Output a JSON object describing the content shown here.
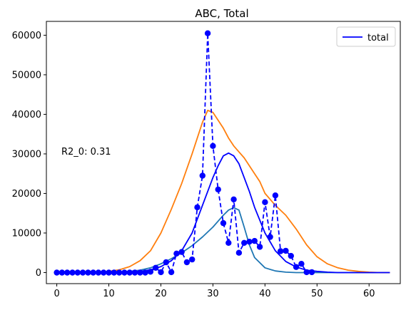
{
  "chart_data": {
    "type": "line",
    "title": "ABC, Total",
    "xlabel": "",
    "ylabel": "",
    "xlim": [
      -2,
      66
    ],
    "ylim": [
      -2800,
      63500
    ],
    "xticks": [
      0,
      10,
      20,
      30,
      40,
      50,
      60
    ],
    "yticks": [
      0,
      10000,
      20000,
      30000,
      40000,
      50000,
      60000
    ],
    "grid": false,
    "legend": {
      "placement": "top-right",
      "entries": [
        "total"
      ]
    },
    "annotation": "R2_0: 0.31",
    "colors": {
      "blue": "#0000ff",
      "orange": "#ff7f0e",
      "teal": "#1f77b4"
    },
    "series": [
      {
        "name": "total",
        "style": "solid",
        "color": "#0000ff",
        "x": [
          0,
          2,
          4,
          6,
          8,
          10,
          12,
          14,
          16,
          18,
          20,
          22,
          24,
          26,
          28,
          30,
          31,
          32,
          33,
          34,
          35,
          36,
          37,
          38,
          40,
          42,
          44,
          46,
          48,
          50,
          52,
          54,
          56,
          58,
          60,
          62,
          64
        ],
        "y": [
          0,
          0,
          0,
          0,
          0,
          0,
          0,
          100,
          300,
          700,
          1500,
          3000,
          5500,
          10000,
          17000,
          24000,
          27000,
          29500,
          30200,
          29500,
          27500,
          24000,
          20500,
          16500,
          10000,
          5500,
          2800,
          1400,
          600,
          300,
          100,
          0,
          0,
          0,
          0,
          0,
          0
        ]
      },
      {
        "style": "dashed-markers",
        "color": "#0000ff",
        "x": [
          0,
          1,
          2,
          3,
          4,
          5,
          6,
          7,
          8,
          9,
          10,
          11,
          12,
          13,
          14,
          15,
          16,
          17,
          18,
          19,
          20,
          21,
          22,
          23,
          24,
          25,
          26,
          27,
          28,
          29,
          30,
          31,
          32,
          33,
          34,
          35,
          36,
          37,
          38,
          39,
          40,
          41,
          42,
          43,
          44,
          45,
          46,
          47,
          48,
          49
        ],
        "y": [
          0,
          0,
          0,
          0,
          0,
          0,
          0,
          0,
          0,
          0,
          0,
          0,
          0,
          0,
          0,
          0,
          0,
          0,
          200,
          1200,
          100,
          2600,
          100,
          4800,
          5200,
          2600,
          3300,
          16500,
          24500,
          60500,
          32000,
          21000,
          12500,
          7500,
          18500,
          5000,
          7500,
          7800,
          8000,
          6500,
          17800,
          9000,
          19500,
          5400,
          5500,
          4200,
          1400,
          2200,
          100,
          100
        ]
      },
      {
        "style": "solid",
        "color": "#ff7f0e",
        "x": [
          0,
          2,
          4,
          6,
          8,
          10,
          12,
          14,
          16,
          18,
          20,
          22,
          24,
          26,
          27,
          28,
          29,
          30,
          31,
          32,
          33,
          34,
          35,
          36,
          37,
          38,
          39,
          40,
          42,
          44,
          46,
          48,
          50,
          52,
          54,
          56,
          58,
          60,
          62,
          64
        ],
        "y": [
          0,
          0,
          0,
          0,
          100,
          300,
          700,
          1500,
          3000,
          5500,
          10000,
          16000,
          22500,
          30000,
          34000,
          38000,
          41000,
          40500,
          38500,
          36500,
          34000,
          32000,
          30500,
          29000,
          27000,
          25000,
          23000,
          20000,
          17000,
          14500,
          11000,
          7000,
          4000,
          2200,
          1200,
          600,
          300,
          100,
          0,
          0
        ]
      },
      {
        "style": "solid",
        "color": "#1f77b4",
        "x": [
          0,
          2,
          4,
          6,
          8,
          10,
          12,
          14,
          16,
          18,
          20,
          22,
          24,
          26,
          28,
          30,
          31,
          32,
          33,
          34,
          35,
          36,
          37,
          38,
          40,
          42,
          44,
          46,
          48,
          50,
          55,
          60,
          64
        ],
        "y": [
          0,
          0,
          0,
          0,
          0,
          0,
          100,
          300,
          600,
          1200,
          2200,
          3500,
          5000,
          6800,
          9000,
          11500,
          13000,
          14500,
          15800,
          16400,
          15800,
          11500,
          7000,
          3800,
          1200,
          400,
          100,
          0,
          0,
          0,
          0,
          0,
          0
        ]
      }
    ]
  }
}
